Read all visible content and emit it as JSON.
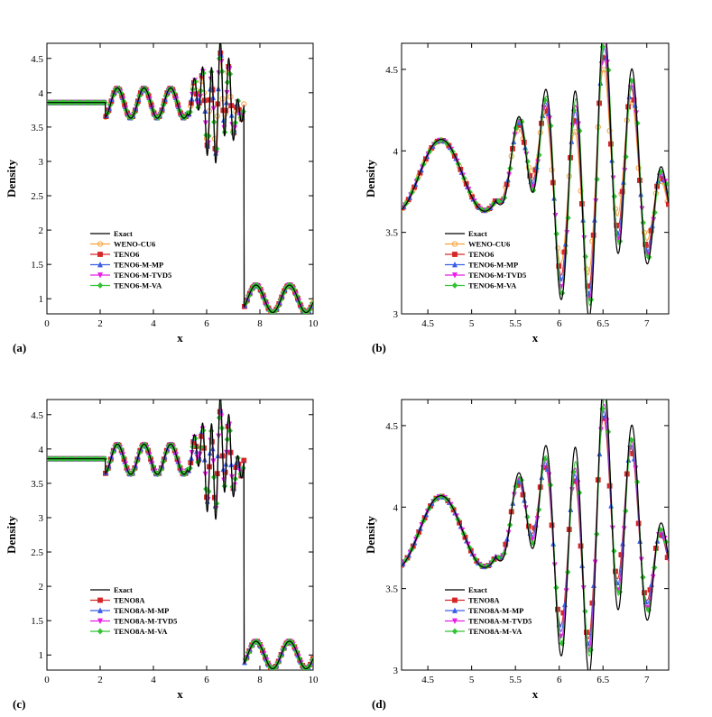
{
  "colors": {
    "Exact": "#000000",
    "WENO-CU6": "#f5a340",
    "TENO6": "#d62728",
    "TENO6-M-MP": "#3a5fe6",
    "TENO6-M-TVD5": "#e61ee6",
    "TENO6-M-VA": "#33c233",
    "TENO8A": "#d62728",
    "TENO8A-M-MP": "#3a5fe6",
    "TENO8A-M-TVD5": "#e61ee6",
    "TENO8A-M-VA": "#33c233"
  },
  "chart_data": [
    {
      "id": "a",
      "type": "line",
      "panel_label": "(a)",
      "xlabel": "x",
      "ylabel": "Density",
      "xlim": [
        0,
        10
      ],
      "ylim": [
        0.78,
        4.72
      ],
      "xticks": [
        "0",
        "2",
        "4",
        "6",
        "8",
        "10"
      ],
      "yticks": [
        "1",
        "1.5",
        "2",
        "2.5",
        "3",
        "3.5",
        "4",
        "4.5"
      ],
      "legend": [
        "Exact",
        "WENO-CU6",
        "TENO6",
        "TENO6-M-MP",
        "TENO6-M-TVD5",
        "TENO6-M-VA"
      ],
      "legend_placement": "lower-left",
      "series_order": [
        "WENO-CU6",
        "TENO6",
        "TENO6-M-MP",
        "TENO6-M-TVD5",
        "TENO6-M-VA"
      ]
    },
    {
      "id": "b",
      "type": "line",
      "panel_label": "(b)",
      "xlabel": "x",
      "ylabel": "Density",
      "xlim": [
        4.2,
        7.25
      ],
      "ylim": [
        3.0,
        4.66
      ],
      "xticks": [
        "4.5",
        "5",
        "5.5",
        "6",
        "6.5",
        "7"
      ],
      "yticks": [
        "3",
        "3.5",
        "4",
        "4.5"
      ],
      "legend": [
        "Exact",
        "WENO-CU6",
        "TENO6",
        "TENO6-M-MP",
        "TENO6-M-TVD5",
        "TENO6-M-VA"
      ],
      "legend_placement": "lower-left",
      "series_order": [
        "WENO-CU6",
        "TENO6",
        "TENO6-M-MP",
        "TENO6-M-TVD5",
        "TENO6-M-VA"
      ]
    },
    {
      "id": "c",
      "type": "line",
      "panel_label": "(c)",
      "xlabel": "x",
      "ylabel": "Density",
      "xlim": [
        0,
        10
      ],
      "ylim": [
        0.78,
        4.72
      ],
      "xticks": [
        "0",
        "2",
        "4",
        "6",
        "8",
        "10"
      ],
      "yticks": [
        "1",
        "1.5",
        "2",
        "2.5",
        "3",
        "3.5",
        "4",
        "4.5"
      ],
      "legend": [
        "Exact",
        "TENO8A",
        "TENO8A-M-MP",
        "TENO8A-M-TVD5",
        "TENO8A-M-VA"
      ],
      "legend_placement": "lower-left",
      "series_order": [
        "TENO8A",
        "TENO8A-M-MP",
        "TENO8A-M-TVD5",
        "TENO8A-M-VA"
      ]
    },
    {
      "id": "d",
      "type": "line",
      "panel_label": "(d)",
      "xlabel": "x",
      "ylabel": "Density",
      "xlim": [
        4.2,
        7.25
      ],
      "ylim": [
        3.0,
        4.66
      ],
      "xticks": [
        "4.5",
        "5",
        "5.5",
        "6",
        "6.5",
        "7"
      ],
      "yticks": [
        "3",
        "3.5",
        "4",
        "4.5"
      ],
      "legend": [
        "Exact",
        "TENO8A",
        "TENO8A-M-MP",
        "TENO8A-M-TVD5",
        "TENO8A-M-VA"
      ],
      "legend_placement": "lower-left",
      "series_order": [
        "TENO8A",
        "TENO8A-M-MP",
        "TENO8A-M-TVD5",
        "TENO8A-M-VA"
      ]
    }
  ],
  "profile": {
    "left_state": 3.857,
    "shock_x": 7.4,
    "post_shock_mean": 1.0,
    "post_shock_amplitude": 0.2,
    "post_shock_wavenumber": 5.0,
    "entropy_wave_mean": 3.85,
    "entropy_wave_amplitude": 0.22,
    "high_freq_amplitude": 0.8,
    "high_freq_period": 0.33,
    "high_freq_center": 6.4,
    "high_freq_halfwidth": 0.7,
    "wave_period": 1.0,
    "wave_start": 2.2
  }
}
